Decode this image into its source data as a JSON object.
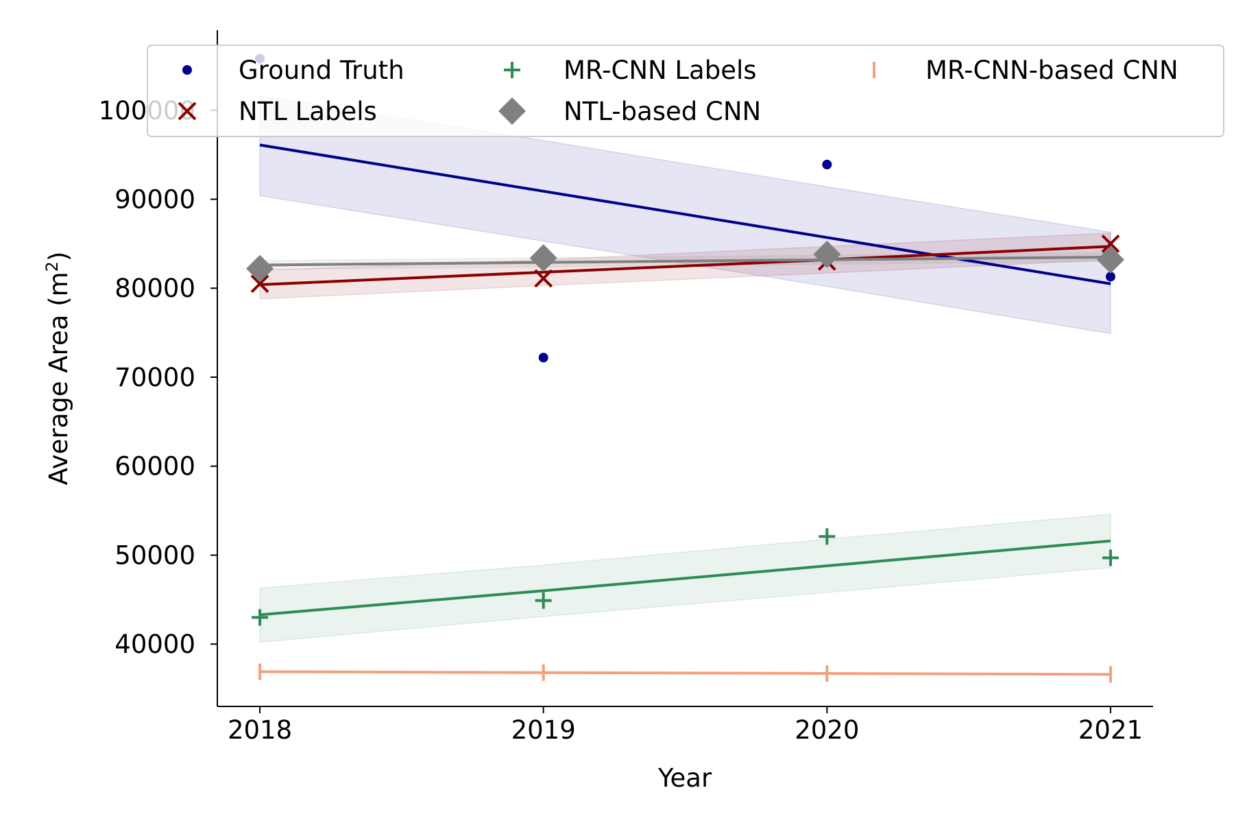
{
  "chart_data": {
    "type": "scatter",
    "title": "",
    "xlabel": "Year",
    "ylabel": "Average Area (m²)",
    "ylabel_base": "Average Area (m",
    "ylabel_sup": "2",
    "ylabel_end": ")",
    "x": [
      2018,
      2019,
      2020,
      2021
    ],
    "xticks": [
      "2018",
      "2019",
      "2020",
      "2021"
    ],
    "yticks": [
      "40000",
      "50000",
      "60000",
      "70000",
      "80000",
      "90000",
      "100000"
    ],
    "xlim": [
      2017.85,
      2021.15
    ],
    "ylim": [
      33000,
      109000
    ],
    "legend_position": "top (3 columns)",
    "series": [
      {
        "name": "Ground Truth",
        "marker": "dot",
        "color": "#00008b",
        "values": [
          105800,
          72200,
          93900,
          81300
        ],
        "fit": [
          96100,
          90900,
          85700,
          80500
        ],
        "band_upper": [
          101600,
          96600,
          91400,
          86300
        ],
        "band_lower": [
          90400,
          85300,
          80200,
          74900
        ]
      },
      {
        "name": "NTL Labels",
        "marker": "x",
        "color": "#8b0000",
        "values": [
          80500,
          81100,
          83000,
          85000
        ],
        "fit": [
          80400,
          81800,
          83200,
          84700
        ],
        "band_upper": [
          82000,
          83200,
          84700,
          86200
        ],
        "band_lower": [
          78800,
          80300,
          81700,
          83200
        ]
      },
      {
        "name": "MR-CNN Labels",
        "marker": "plus",
        "color": "#2e8b57",
        "values": [
          43000,
          44900,
          52100,
          49700
        ],
        "fit": [
          43300,
          46000,
          48800,
          51600
        ],
        "band_upper": [
          46300,
          48900,
          51800,
          54600
        ],
        "band_lower": [
          40200,
          43100,
          45800,
          48600
        ]
      },
      {
        "name": "NTL-based CNN",
        "marker": "diamond",
        "color": "#808080",
        "values": [
          82200,
          83400,
          83800,
          83200
        ],
        "fit": [
          82600,
          82900,
          83200,
          83500
        ],
        "band_upper": [
          83100,
          83400,
          83700,
          84000
        ],
        "band_lower": [
          82100,
          82400,
          82700,
          83000
        ]
      },
      {
        "name": "MR-CNN-based CNN",
        "marker": "vline",
        "color": "#f4a07e",
        "values": [
          36900,
          36800,
          36700,
          36600
        ],
        "fit": [
          36900,
          36800,
          36700,
          36600
        ],
        "band_upper": [
          37000,
          36900,
          36800,
          36700
        ],
        "band_lower": [
          36800,
          36700,
          36600,
          36500
        ]
      }
    ]
  }
}
